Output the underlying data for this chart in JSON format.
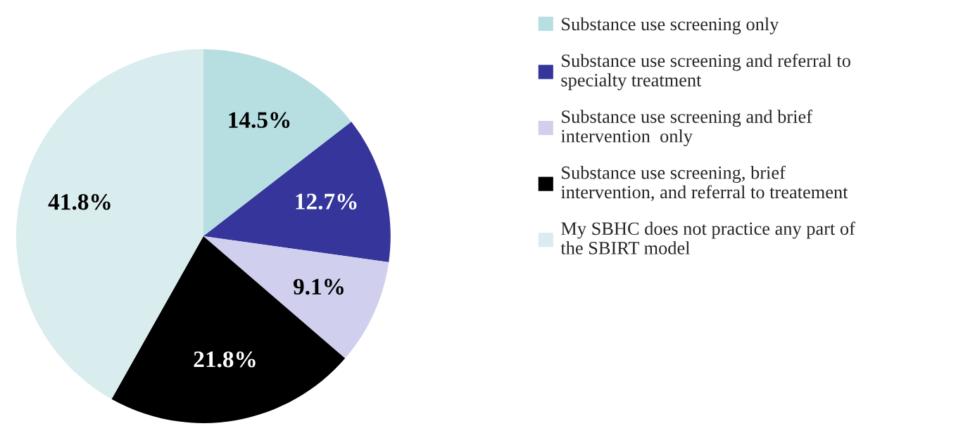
{
  "chart_data": {
    "type": "pie",
    "categories": [
      "Substance use screening only",
      "Substance use screening and referral to\nspecialty treatment",
      "Substance use screening and brief\nintervention  only",
      "Substance use screening, brief\nintervention, and referral to treatement",
      "My SBHC does not practice any part of\nthe SBIRT model"
    ],
    "values": [
      14.5,
      12.7,
      9.1,
      21.8,
      41.8
    ],
    "value_labels": [
      "14.5%",
      "12.7%",
      "9.1%",
      "21.8%",
      "41.8%"
    ],
    "colors": [
      "#b7dfe1",
      "#35359b",
      "#d0d0ee",
      "#000000",
      "#d9ecee"
    ],
    "legend": "right"
  }
}
